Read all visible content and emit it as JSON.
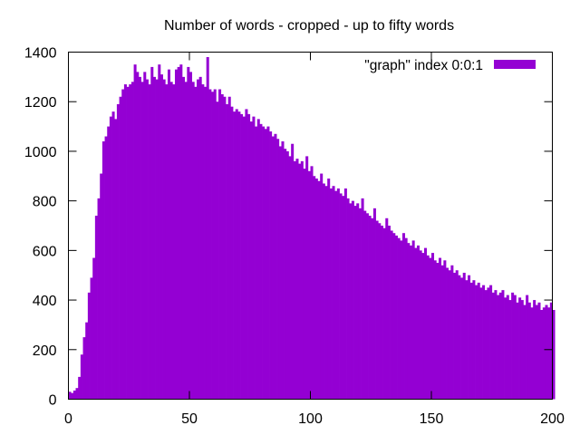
{
  "chart_data": {
    "type": "bar",
    "title": "Number of words - cropped - up to fifty words",
    "xlabel": "",
    "ylabel": "",
    "xlim": [
      0,
      200
    ],
    "ylim": [
      0,
      1400
    ],
    "xticks": [
      0,
      50,
      100,
      150,
      200
    ],
    "yticks": [
      0,
      200,
      400,
      600,
      800,
      1000,
      1200,
      1400
    ],
    "grid": false,
    "legend_position": "top-right",
    "series": [
      {
        "name": "\"graph\" index 0:0:1",
        "color": "#9400d3",
        "x_start": 0,
        "bin_width": 1,
        "values": [
          30,
          25,
          35,
          45,
          90,
          180,
          250,
          310,
          430,
          490,
          570,
          740,
          810,
          910,
          1040,
          1060,
          1100,
          1140,
          1160,
          1130,
          1190,
          1220,
          1250,
          1270,
          1260,
          1270,
          1280,
          1350,
          1320,
          1300,
          1280,
          1320,
          1290,
          1270,
          1340,
          1300,
          1290,
          1350,
          1310,
          1290,
          1270,
          1330,
          1280,
          1270,
          1330,
          1340,
          1350,
          1300,
          1280,
          1340,
          1320,
          1280,
          1260,
          1290,
          1300,
          1270,
          1260,
          1380,
          1250,
          1240,
          1250,
          1200,
          1250,
          1230,
          1220,
          1190,
          1220,
          1180,
          1160,
          1170,
          1160,
          1150,
          1140,
          1170,
          1150,
          1120,
          1140,
          1100,
          1130,
          1110,
          1100,
          1090,
          1100,
          1080,
          1060,
          1070,
          1050,
          1020,
          1040,
          1010,
          1000,
          980,
          1030,
          960,
          970,
          950,
          960,
          930,
          980,
          920,
          940,
          900,
          890,
          880,
          910,
          870,
          860,
          890,
          850,
          860,
          840,
          850,
          830,
          820,
          850,
          810,
          790,
          800,
          780,
          790,
          770,
          810,
          760,
          750,
          740,
          730,
          770,
          720,
          710,
          700,
          690,
          730,
          700,
          680,
          670,
          660,
          650,
          640,
          670,
          650,
          630,
          620,
          640,
          610,
          620,
          600,
          590,
          610,
          580,
          570,
          590,
          560,
          550,
          570,
          540,
          560,
          530,
          520,
          540,
          510,
          520,
          500,
          490,
          510,
          480,
          500,
          470,
          480,
          460,
          470,
          450,
          460,
          440,
          450,
          460,
          430,
          440,
          420,
          430,
          440,
          410,
          420,
          400,
          430,
          420,
          390,
          410,
          400,
          380,
          420,
          390,
          370,
          400,
          380,
          390,
          360,
          370,
          380,
          370,
          390,
          360
        ]
      }
    ]
  }
}
